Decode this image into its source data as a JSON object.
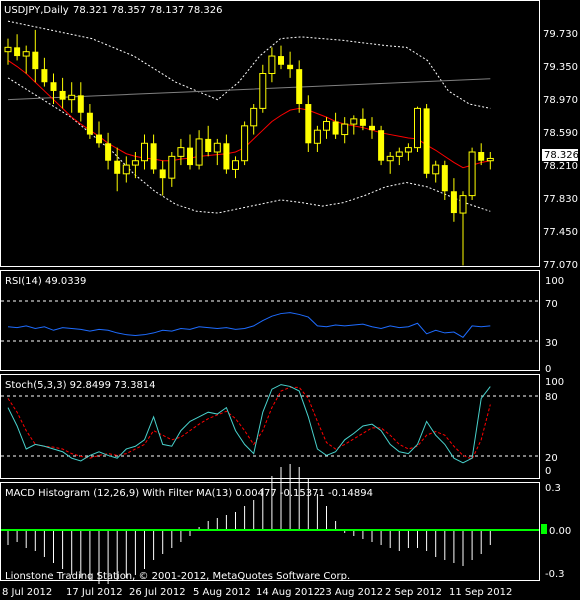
{
  "window": {
    "symbol_title": "USDJPY,Daily",
    "ohlc": "78.321 78.357 78.137 78.326",
    "footer": "Lionstone Trading Station, © 2001-2012, MetaQuotes Software Corp."
  },
  "x_labels": [
    "8 Jul 2012",
    "17 Jul 2012",
    "26 Jul 2012",
    "5 Aug 2012",
    "14 Aug 2012",
    "23 Aug 2012",
    "2 Sep 2012",
    "11 Sep 2012"
  ],
  "colors": {
    "background": "#000000",
    "grid": "#ffffff",
    "candle": "#ffff00",
    "ma_red": "#ff0000",
    "ma_gray": "#808080",
    "bands": "#ffffff",
    "rsi": "#1e6cff",
    "stoch_main": "#48d1cc",
    "stoch_signal": "#ff0000",
    "macd": "#ffffff",
    "macd_zero": "#00ff00"
  },
  "panels": {
    "price": {
      "current_price": "78.326",
      "y_ticks": [
        "79.730",
        "79.350",
        "78.970",
        "78.590",
        "78.210",
        "77.830",
        "77.450",
        "77.070"
      ]
    },
    "rsi": {
      "title": "RSI(14) 49.0339",
      "y_ticks": [
        "100",
        "70",
        "30",
        "0"
      ]
    },
    "stoch": {
      "title": "Stoch(5,3,3) 92.8499 73.3814",
      "y_ticks": [
        "100",
        "80",
        "20",
        "0"
      ]
    },
    "macd": {
      "title": "MACD Histogram (12,26,9) With Filter MA(13) 0.00477 -0.15371 -0.14894",
      "y_ticks": [
        "0.3",
        "0.00",
        "-0.3"
      ]
    }
  },
  "chart_data": [
    {
      "type": "candlestick",
      "title": "USDJPY,Daily",
      "ylim": [
        77.05,
        79.8
      ],
      "candles": [
        [
          79.55,
          79.7,
          79.4,
          79.6
        ],
        [
          79.6,
          79.75,
          79.45,
          79.5
        ],
        [
          79.5,
          79.62,
          79.3,
          79.55
        ],
        [
          79.55,
          79.8,
          79.2,
          79.35
        ],
        [
          79.35,
          79.48,
          79.15,
          79.2
        ],
        [
          79.2,
          79.3,
          78.95,
          79.1
        ],
        [
          79.1,
          79.25,
          78.9,
          79.0
        ],
        [
          79.0,
          79.2,
          78.85,
          79.05
        ],
        [
          79.05,
          79.2,
          78.75,
          78.85
        ],
        [
          78.85,
          78.95,
          78.55,
          78.6
        ],
        [
          78.6,
          78.75,
          78.45,
          78.5
        ],
        [
          78.5,
          78.62,
          78.2,
          78.3
        ],
        [
          78.3,
          78.45,
          77.95,
          78.15
        ],
        [
          78.15,
          78.35,
          78.05,
          78.25
        ],
        [
          78.25,
          78.4,
          78.1,
          78.3
        ],
        [
          78.3,
          78.6,
          78.2,
          78.5
        ],
        [
          78.5,
          78.6,
          78.15,
          78.2
        ],
        [
          78.2,
          78.3,
          77.9,
          78.1
        ],
        [
          78.1,
          78.4,
          78.0,
          78.35
        ],
        [
          78.35,
          78.55,
          78.25,
          78.45
        ],
        [
          78.45,
          78.6,
          78.2,
          78.25
        ],
        [
          78.25,
          78.65,
          78.2,
          78.55
        ],
        [
          78.55,
          78.7,
          78.35,
          78.4
        ],
        [
          78.4,
          78.55,
          78.25,
          78.5
        ],
        [
          78.5,
          78.6,
          78.15,
          78.2
        ],
        [
          78.2,
          78.35,
          78.1,
          78.3
        ],
        [
          78.3,
          78.75,
          78.25,
          78.7
        ],
        [
          78.7,
          78.95,
          78.6,
          78.9
        ],
        [
          78.9,
          79.4,
          78.85,
          79.3
        ],
        [
          79.3,
          79.6,
          79.2,
          79.5
        ],
        [
          79.5,
          79.62,
          79.35,
          79.4
        ],
        [
          79.4,
          79.55,
          79.25,
          79.35
        ],
        [
          79.35,
          79.45,
          78.85,
          78.95
        ],
        [
          78.95,
          79.05,
          78.4,
          78.5
        ],
        [
          78.5,
          78.7,
          78.4,
          78.65
        ],
        [
          78.65,
          78.8,
          78.55,
          78.75
        ],
        [
          78.75,
          78.85,
          78.55,
          78.6
        ],
        [
          78.6,
          78.8,
          78.5,
          78.72
        ],
        [
          78.72,
          78.82,
          78.6,
          78.78
        ],
        [
          78.78,
          78.9,
          78.65,
          78.7
        ],
        [
          78.7,
          78.8,
          78.55,
          78.65
        ],
        [
          78.65,
          78.7,
          78.25,
          78.3
        ],
        [
          78.3,
          78.4,
          78.15,
          78.35
        ],
        [
          78.35,
          78.45,
          78.25,
          78.4
        ],
        [
          78.4,
          78.5,
          78.3,
          78.45
        ],
        [
          78.45,
          78.92,
          78.4,
          78.9
        ],
        [
          78.9,
          78.95,
          78.1,
          78.15
        ],
        [
          78.15,
          78.3,
          78.05,
          78.25
        ],
        [
          78.25,
          78.3,
          77.85,
          77.95
        ],
        [
          77.95,
          78.1,
          77.6,
          77.7
        ],
        [
          77.7,
          77.95,
          77.1,
          77.9
        ],
        [
          77.9,
          78.45,
          77.85,
          78.4
        ],
        [
          78.4,
          78.5,
          78.25,
          78.3
        ],
        [
          78.3,
          78.4,
          78.2,
          78.326
        ]
      ],
      "series": [
        {
          "name": "MA red",
          "values": [
            79.45,
            79.38,
            79.3,
            79.2,
            79.1,
            79.0,
            78.9,
            78.8,
            78.72,
            78.65,
            78.58,
            78.5,
            78.44,
            78.38,
            78.35,
            78.33,
            78.32,
            78.3,
            78.3,
            78.32,
            78.33,
            78.35,
            78.36,
            78.37,
            78.38,
            78.4,
            78.45,
            78.55,
            78.65,
            78.75,
            78.82,
            78.88,
            78.9,
            78.88,
            78.84,
            78.8,
            78.75,
            78.72,
            78.7,
            78.68,
            78.65,
            78.62,
            78.6,
            78.58,
            78.56,
            78.55,
            78.48,
            78.42,
            78.35,
            78.28,
            78.22,
            78.25,
            78.28,
            78.3
          ]
        },
        {
          "name": "MA gray",
          "values": [
            79.0,
            79.03,
            79.06,
            79.09,
            79.12,
            79.15,
            79.18,
            79.21,
            79.24
          ]
        },
        {
          "name": "Band upper",
          "values": [
            79.9,
            79.85,
            79.8,
            79.75,
            79.7,
            79.6,
            79.5,
            79.35,
            79.2,
            79.1,
            79.0,
            79.2,
            79.5,
            79.7,
            79.72,
            79.7,
            79.68,
            79.65,
            79.62,
            79.6,
            79.45,
            79.1,
            78.95,
            78.9
          ]
        },
        {
          "name": "Band lower",
          "values": [
            79.25,
            79.1,
            78.95,
            78.8,
            78.6,
            78.4,
            78.15,
            77.95,
            77.8,
            77.72,
            77.7,
            77.75,
            77.8,
            77.85,
            77.82,
            77.78,
            77.82,
            77.9,
            78.0,
            78.05,
            78.0,
            77.9,
            77.8,
            77.72
          ]
        }
      ],
      "annotations": [
        "78.326"
      ]
    },
    {
      "type": "line",
      "title": "RSI(14) 49.0339",
      "ylim": [
        0,
        100
      ],
      "series": [
        {
          "name": "RSI",
          "values": [
            48,
            47,
            49,
            46,
            48,
            44,
            47,
            46,
            45,
            43,
            45,
            44,
            41,
            39,
            38,
            39,
            41,
            44,
            43,
            46,
            45,
            48,
            47,
            46,
            47,
            45,
            46,
            49,
            55,
            60,
            63,
            64,
            62,
            59,
            49,
            48,
            50,
            49,
            50,
            51,
            48,
            46,
            49,
            47,
            48,
            52,
            40,
            44,
            41,
            42,
            36,
            49,
            48,
            49
          ]
        }
      ]
    },
    {
      "type": "line",
      "title": "Stoch(5,3,3) 92.8499 73.3814",
      "ylim": [
        0,
        100
      ],
      "series": [
        {
          "name": "Main",
          "values": [
            70,
            50,
            25,
            30,
            28,
            25,
            22,
            15,
            12,
            18,
            22,
            18,
            15,
            25,
            28,
            35,
            60,
            30,
            28,
            45,
            55,
            60,
            65,
            63,
            70,
            45,
            30,
            20,
            65,
            90,
            95,
            93,
            88,
            60,
            25,
            18,
            22,
            35,
            42,
            50,
            52,
            45,
            30,
            22,
            20,
            30,
            55,
            40,
            30,
            15,
            10,
            15,
            80,
            92.85
          ]
        },
        {
          "name": "Signal",
          "values": [
            80,
            65,
            45,
            30,
            28,
            27,
            25,
            20,
            17,
            15,
            18,
            20,
            18,
            20,
            25,
            30,
            45,
            40,
            35,
            38,
            45,
            52,
            58,
            62,
            66,
            58,
            45,
            30,
            45,
            70,
            88,
            92,
            92,
            80,
            55,
            32,
            25,
            30,
            36,
            42,
            48,
            48,
            40,
            30,
            25,
            28,
            40,
            44,
            40,
            28,
            18,
            14,
            35,
            73.38
          ]
        }
      ]
    },
    {
      "type": "bar",
      "title": "MACD Histogram (12,26,9) With Filter MA(13) 0.00477 -0.15371 -0.14894",
      "ylim": [
        -0.3,
        0.3
      ],
      "values": [
        -0.05,
        -0.04,
        -0.06,
        -0.07,
        -0.09,
        -0.11,
        -0.13,
        -0.15,
        -0.16,
        -0.17,
        -0.18,
        -0.18,
        -0.17,
        -0.16,
        -0.15,
        -0.13,
        -0.1,
        -0.08,
        -0.06,
        -0.04,
        -0.02,
        0.01,
        0.03,
        0.04,
        0.05,
        0.06,
        0.08,
        0.1,
        0.14,
        0.18,
        0.21,
        0.22,
        0.21,
        0.17,
        0.12,
        0.08,
        0.03,
        -0.01,
        -0.02,
        -0.03,
        -0.04,
        -0.05,
        -0.06,
        -0.07,
        -0.06,
        -0.06,
        -0.07,
        -0.09,
        -0.1,
        -0.11,
        -0.12,
        -0.1,
        -0.08,
        -0.05
      ]
    }
  ]
}
